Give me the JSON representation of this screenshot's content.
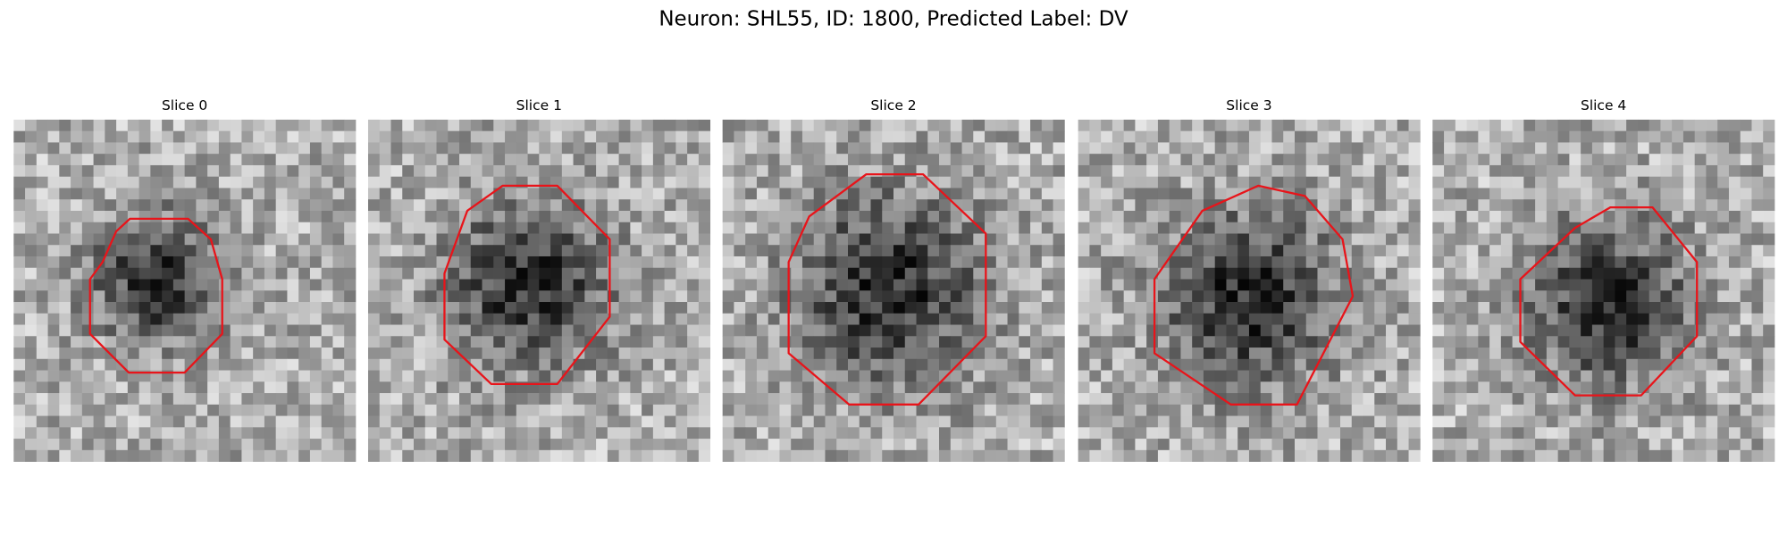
{
  "figure": {
    "title": "Neuron: SHL55, ID: 1800, Predicted Label: DV",
    "panels": [
      {
        "title": "Slice 0"
      },
      {
        "title": "Slice 1"
      },
      {
        "title": "Slice 2"
      },
      {
        "title": "Slice 3"
      },
      {
        "title": "Slice 4"
      }
    ]
  }
}
